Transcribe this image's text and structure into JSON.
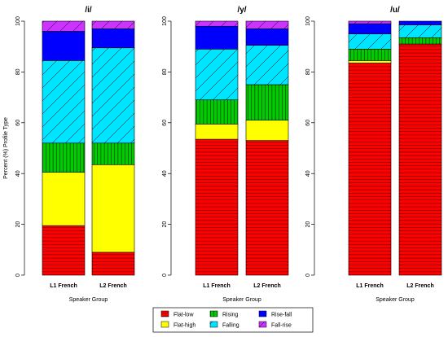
{
  "chart_data": {
    "type": "bar",
    "stacked": true,
    "ylabel": "Percent (%) Profile Type",
    "xlabel": "Speaker Group",
    "ylim": [
      0,
      100
    ],
    "yticks": [
      0,
      20,
      40,
      60,
      80,
      100
    ],
    "legend_position": "bottom",
    "categories_legend": [
      "Flat-low",
      "Flat-high",
      "Rising",
      "Falling",
      "Rise-fall",
      "Fall-rise"
    ],
    "colors": {
      "Flat-low": "#ff0000",
      "Flat-high": "#ffff00",
      "Rising": "#00cc00",
      "Falling": "#00e5ff",
      "Rise-fall": "#0000ff",
      "Fall-rise": "#cc33ff"
    },
    "patterns": {
      "Flat-low": "horizontal",
      "Flat-high": "none",
      "Rising": "vertical",
      "Falling": "diagonal",
      "Rise-fall": "none",
      "Fall-rise": "diagonal"
    },
    "panels": [
      {
        "title": "/i/",
        "groups": [
          {
            "label": "L1 French",
            "values": {
              "Flat-low": 19.5,
              "Flat-high": 21,
              "Rising": 11.5,
              "Falling": 32.5,
              "Rise-fall": 11.5,
              "Fall-rise": 4
            }
          },
          {
            "label": "L2 French",
            "values": {
              "Flat-low": 9,
              "Flat-high": 34.5,
              "Rising": 8.5,
              "Falling": 37.5,
              "Rise-fall": 7.5,
              "Fall-rise": 3
            }
          }
        ]
      },
      {
        "title": "/y/",
        "groups": [
          {
            "label": "L1 French",
            "values": {
              "Flat-low": 53.5,
              "Flat-high": 6,
              "Rising": 9.5,
              "Falling": 20,
              "Rise-fall": 9,
              "Fall-rise": 2
            }
          },
          {
            "label": "L2 French",
            "values": {
              "Flat-low": 53,
              "Flat-high": 8,
              "Rising": 14,
              "Falling": 15.5,
              "Rise-fall": 6.5,
              "Fall-rise": 3
            }
          }
        ]
      },
      {
        "title": "/u/",
        "groups": [
          {
            "label": "L1 French",
            "values": {
              "Flat-low": 83.5,
              "Flat-high": 1,
              "Rising": 4.5,
              "Falling": 6,
              "Rise-fall": 4,
              "Fall-rise": 1
            }
          },
          {
            "label": "L2 French",
            "values": {
              "Flat-low": 91,
              "Flat-high": 0,
              "Rising": 2.5,
              "Falling": 5,
              "Rise-fall": 1.5,
              "Fall-rise": 0
            }
          }
        ]
      }
    ]
  }
}
